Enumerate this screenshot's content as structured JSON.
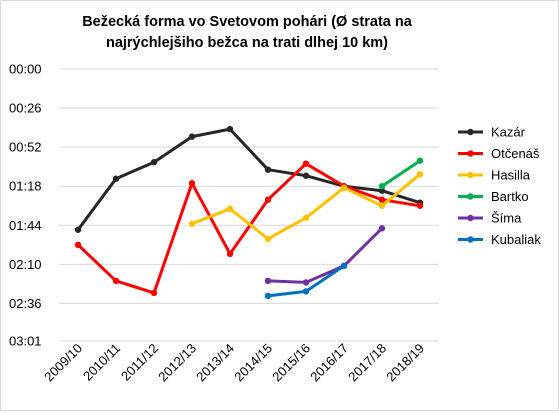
{
  "chart_data": {
    "type": "line",
    "title_lines": [
      "Bežecká forma vo Svetovom pohári (Ø strata na",
      "najrýchlejšiho bežca na trati dlhej 10 km)"
    ],
    "categories": [
      "2009/10",
      "2010/11",
      "2011/12",
      "2012/13",
      "2013/14",
      "2014/15",
      "2015/16",
      "2016/17",
      "2017/18",
      "2018/19"
    ],
    "y_unit": "seconds",
    "y_reversed": true,
    "ylim": [
      0,
      181
    ],
    "y_ticks": [
      0,
      26,
      52,
      78,
      104,
      130,
      156,
      181
    ],
    "y_tick_labels": [
      "00:00",
      "00:26",
      "00:52",
      "01:18",
      "01:44",
      "02:10",
      "02:36",
      "03:01"
    ],
    "grid": "horizontal",
    "legend_position": "right",
    "series": [
      {
        "name": "Kazár",
        "color": "#262626",
        "values": [
          107,
          73,
          62,
          45,
          40,
          67,
          71,
          78,
          81,
          89
        ]
      },
      {
        "name": "Otčenáš",
        "color": "#ff0000",
        "values": [
          117,
          141,
          149,
          76,
          123,
          87,
          63,
          78,
          87,
          91
        ]
      },
      {
        "name": "Hasilla",
        "color": "#ffc000",
        "values": [
          null,
          null,
          null,
          103,
          93,
          113,
          99,
          79,
          91,
          70
        ]
      },
      {
        "name": "Bartko",
        "color": "#00b050",
        "values": [
          null,
          null,
          null,
          null,
          null,
          null,
          null,
          null,
          78,
          61
        ]
      },
      {
        "name": "Šíma",
        "color": "#7030a0",
        "values": [
          null,
          null,
          null,
          null,
          null,
          141,
          142,
          131,
          106,
          null
        ]
      },
      {
        "name": "Kubaliak",
        "color": "#0070c0",
        "values": [
          null,
          null,
          null,
          null,
          null,
          151,
          148,
          131,
          null,
          null
        ]
      }
    ]
  }
}
